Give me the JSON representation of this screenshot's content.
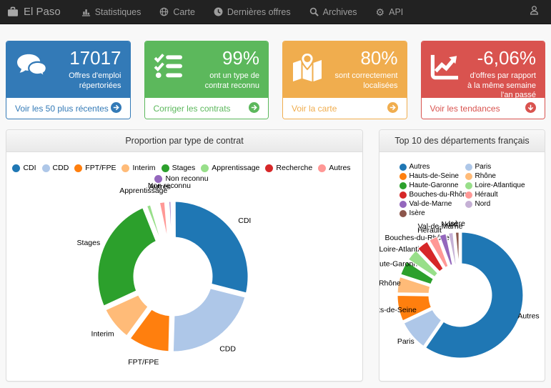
{
  "navbar": {
    "brand": "El Paso",
    "brand_icon": "briefcase-icon",
    "items": [
      {
        "label": "Statistiques",
        "icon": "bar-chart-icon"
      },
      {
        "label": "Carte",
        "icon": "globe-icon"
      },
      {
        "label": "Dernières offres",
        "icon": "clock-icon"
      },
      {
        "label": "Archives",
        "icon": "search-icon"
      },
      {
        "label": "API",
        "icon": "gear-icon"
      }
    ],
    "right_icon": "user-icon",
    "colors": {
      "background": "#222222",
      "text": "#9d9d9d"
    }
  },
  "cards": [
    {
      "value": "17017",
      "description": "Offres d'emploi répertoriées",
      "link": "Voir les 50 plus récentes",
      "icon": "comments-icon",
      "arrow_icon": "arrow-circle-right-icon",
      "color": "#337ab7"
    },
    {
      "value": "99%",
      "description": "ont un type de contrat reconnu",
      "link": "Corriger les contrats",
      "icon": "tasks-icon",
      "arrow_icon": "arrow-circle-right-icon",
      "color": "#5cb85c"
    },
    {
      "value": "80%",
      "description": "sont correctement localisées",
      "link": "Voir la carte",
      "icon": "map-marker-icon",
      "arrow_icon": "arrow-circle-right-icon",
      "color": "#f0ad4e"
    },
    {
      "value": "-6,06%",
      "description": "d'offres par rapport à la même semaine l'an passé",
      "link": "Voir les tendances",
      "icon": "line-chart-icon",
      "arrow_icon": "arrow-circle-down-icon",
      "color": "#d9534f"
    }
  ],
  "chart_data": [
    {
      "type": "pie",
      "donut": true,
      "title": "Proportion par type de contrat",
      "legend_position": "top",
      "label_threshold": 0.0115,
      "slices": [
        {
          "label": "CDI",
          "value": 27.0,
          "color": "#1f77b4"
        },
        {
          "label": "CDD",
          "value": 20.0,
          "color": "#aec7e8"
        },
        {
          "label": "FPT/FPE",
          "value": 9.0,
          "color": "#ff7f0e"
        },
        {
          "label": "Interim",
          "value": 7.5,
          "color": "#ffbb78"
        },
        {
          "label": "Stages",
          "value": 24.0,
          "color": "#2ca02c"
        },
        {
          "label": "Apprentissage",
          "value": 1.6,
          "color": "#98df8a"
        },
        {
          "label": "Recherche",
          "value": 1.0,
          "color": "#d62728"
        },
        {
          "label": "Autres",
          "value": 1.9,
          "color": "#ff9896"
        },
        {
          "label": "Non reconnu",
          "value": 1.2,
          "color": "#9467bd"
        }
      ]
    },
    {
      "type": "pie",
      "donut": true,
      "title": "Top 10 des départements français",
      "legend_position": "top",
      "label_threshold": 0,
      "slices": [
        {
          "label": "Autres",
          "value": 59.0,
          "color": "#1f77b4"
        },
        {
          "label": "Paris",
          "value": 8.3,
          "color": "#aec7e8"
        },
        {
          "label": "Hauts-de-Seine",
          "value": 7.2,
          "color": "#ff7f0e"
        },
        {
          "label": "Rhône",
          "value": 4.7,
          "color": "#ffbb78"
        },
        {
          "label": "Haute-Garonne",
          "value": 4.2,
          "color": "#2ca02c"
        },
        {
          "label": "Loire-Atlantique",
          "value": 3.6,
          "color": "#98df8a"
        },
        {
          "label": "Bouches-du-Rhône",
          "value": 3.6,
          "color": "#d62728"
        },
        {
          "label": "Hérault",
          "value": 2.8,
          "color": "#ff9896"
        },
        {
          "label": "Val-de-Marne",
          "value": 2.3,
          "color": "#9467bd"
        },
        {
          "label": "Nord",
          "value": 1.8,
          "color": "#c5b0d5"
        },
        {
          "label": "Isère",
          "value": 1.5,
          "color": "#8c564b"
        }
      ]
    }
  ]
}
